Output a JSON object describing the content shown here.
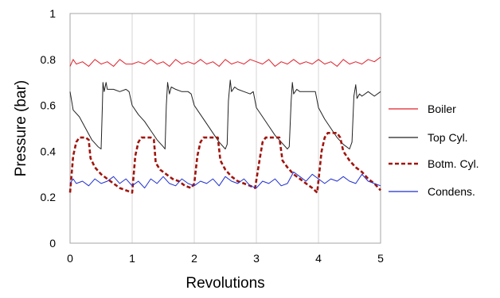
{
  "chart_data": {
    "type": "line",
    "title": "",
    "xlabel": "Revolutions",
    "ylabel": "Pressure (bar)",
    "xlim": [
      0,
      5
    ],
    "ylim": [
      0,
      1
    ],
    "x_ticks": [
      "0",
      "1",
      "2",
      "3",
      "4",
      "5"
    ],
    "y_ticks": [
      "0",
      "0.2",
      "0.4",
      "0.6",
      "0.8",
      "1"
    ],
    "grid": "vertical",
    "legend_position": "right",
    "series": [
      {
        "name": "Boiler",
        "color": "#e0202a",
        "style": "solid",
        "points": [
          [
            0,
            0.77
          ],
          [
            0.05,
            0.8
          ],
          [
            0.1,
            0.78
          ],
          [
            0.2,
            0.79
          ],
          [
            0.3,
            0.77
          ],
          [
            0.4,
            0.8
          ],
          [
            0.5,
            0.78
          ],
          [
            0.6,
            0.79
          ],
          [
            0.7,
            0.77
          ],
          [
            0.8,
            0.8
          ],
          [
            0.9,
            0.78
          ],
          [
            1.0,
            0.78
          ],
          [
            1.1,
            0.79
          ],
          [
            1.2,
            0.78
          ],
          [
            1.3,
            0.8
          ],
          [
            1.4,
            0.78
          ],
          [
            1.5,
            0.79
          ],
          [
            1.6,
            0.77
          ],
          [
            1.7,
            0.8
          ],
          [
            1.8,
            0.78
          ],
          [
            1.9,
            0.79
          ],
          [
            2.0,
            0.78
          ],
          [
            2.1,
            0.8
          ],
          [
            2.2,
            0.78
          ],
          [
            2.3,
            0.79
          ],
          [
            2.4,
            0.77
          ],
          [
            2.5,
            0.8
          ],
          [
            2.6,
            0.78
          ],
          [
            2.7,
            0.79
          ],
          [
            2.8,
            0.78
          ],
          [
            2.9,
            0.8
          ],
          [
            3.0,
            0.79
          ],
          [
            3.1,
            0.78
          ],
          [
            3.2,
            0.8
          ],
          [
            3.3,
            0.77
          ],
          [
            3.4,
            0.79
          ],
          [
            3.5,
            0.78
          ],
          [
            3.6,
            0.8
          ],
          [
            3.7,
            0.78
          ],
          [
            3.8,
            0.79
          ],
          [
            3.9,
            0.78
          ],
          [
            4.0,
            0.8
          ],
          [
            4.1,
            0.78
          ],
          [
            4.2,
            0.79
          ],
          [
            4.3,
            0.77
          ],
          [
            4.4,
            0.8
          ],
          [
            4.5,
            0.78
          ],
          [
            4.6,
            0.79
          ],
          [
            4.7,
            0.78
          ],
          [
            4.8,
            0.8
          ],
          [
            4.9,
            0.79
          ],
          [
            5.0,
            0.81
          ]
        ]
      },
      {
        "name": "Top Cyl.",
        "color": "#222222",
        "style": "solid",
        "points": [
          [
            0,
            0.66
          ],
          [
            0.05,
            0.58
          ],
          [
            0.15,
            0.55
          ],
          [
            0.25,
            0.5
          ],
          [
            0.35,
            0.45
          ],
          [
            0.45,
            0.42
          ],
          [
            0.5,
            0.41
          ],
          [
            0.52,
            0.6
          ],
          [
            0.53,
            0.7
          ],
          [
            0.55,
            0.66
          ],
          [
            0.58,
            0.7
          ],
          [
            0.6,
            0.67
          ],
          [
            0.7,
            0.67
          ],
          [
            0.8,
            0.66
          ],
          [
            0.9,
            0.67
          ],
          [
            0.95,
            0.66
          ],
          [
            1.0,
            0.6
          ],
          [
            1.1,
            0.56
          ],
          [
            1.2,
            0.53
          ],
          [
            1.3,
            0.49
          ],
          [
            1.4,
            0.45
          ],
          [
            1.5,
            0.42
          ],
          [
            1.53,
            0.41
          ],
          [
            1.55,
            0.6
          ],
          [
            1.57,
            0.7
          ],
          [
            1.6,
            0.65
          ],
          [
            1.63,
            0.68
          ],
          [
            1.7,
            0.67
          ],
          [
            1.8,
            0.66
          ],
          [
            1.9,
            0.66
          ],
          [
            1.95,
            0.65
          ],
          [
            2.0,
            0.6
          ],
          [
            2.1,
            0.56
          ],
          [
            2.2,
            0.52
          ],
          [
            2.3,
            0.48
          ],
          [
            2.4,
            0.44
          ],
          [
            2.5,
            0.41
          ],
          [
            2.53,
            0.43
          ],
          [
            2.55,
            0.62
          ],
          [
            2.58,
            0.71
          ],
          [
            2.6,
            0.66
          ],
          [
            2.65,
            0.68
          ],
          [
            2.7,
            0.67
          ],
          [
            2.8,
            0.66
          ],
          [
            2.9,
            0.65
          ],
          [
            2.95,
            0.66
          ],
          [
            3.0,
            0.59
          ],
          [
            3.1,
            0.55
          ],
          [
            3.2,
            0.51
          ],
          [
            3.3,
            0.47
          ],
          [
            3.4,
            0.44
          ],
          [
            3.5,
            0.41
          ],
          [
            3.53,
            0.42
          ],
          [
            3.56,
            0.62
          ],
          [
            3.58,
            0.7
          ],
          [
            3.6,
            0.65
          ],
          [
            3.65,
            0.67
          ],
          [
            3.7,
            0.66
          ],
          [
            3.8,
            0.66
          ],
          [
            3.9,
            0.66
          ],
          [
            3.95,
            0.66
          ],
          [
            4.0,
            0.59
          ],
          [
            4.1,
            0.54
          ],
          [
            4.2,
            0.5
          ],
          [
            4.3,
            0.46
          ],
          [
            4.4,
            0.43
          ],
          [
            4.5,
            0.41
          ],
          [
            4.54,
            0.44
          ],
          [
            4.57,
            0.64
          ],
          [
            4.6,
            0.69
          ],
          [
            4.62,
            0.63
          ],
          [
            4.66,
            0.65
          ],
          [
            4.7,
            0.64
          ],
          [
            4.8,
            0.66
          ],
          [
            4.9,
            0.64
          ],
          [
            5.0,
            0.66
          ]
        ]
      },
      {
        "name": "Botm. Cyl.",
        "color": "#a0150e",
        "style": "dashed",
        "points": [
          [
            0,
            0.22
          ],
          [
            0.05,
            0.38
          ],
          [
            0.1,
            0.44
          ],
          [
            0.15,
            0.46
          ],
          [
            0.25,
            0.46
          ],
          [
            0.3,
            0.45
          ],
          [
            0.33,
            0.37
          ],
          [
            0.4,
            0.33
          ],
          [
            0.5,
            0.3
          ],
          [
            0.6,
            0.28
          ],
          [
            0.7,
            0.26
          ],
          [
            0.8,
            0.24
          ],
          [
            0.9,
            0.23
          ],
          [
            1.0,
            0.22
          ],
          [
            1.05,
            0.38
          ],
          [
            1.1,
            0.44
          ],
          [
            1.15,
            0.46
          ],
          [
            1.3,
            0.46
          ],
          [
            1.35,
            0.45
          ],
          [
            1.38,
            0.35
          ],
          [
            1.45,
            0.32
          ],
          [
            1.55,
            0.3
          ],
          [
            1.65,
            0.28
          ],
          [
            1.75,
            0.27
          ],
          [
            1.85,
            0.25
          ],
          [
            1.95,
            0.24
          ],
          [
            2.0,
            0.26
          ],
          [
            2.05,
            0.38
          ],
          [
            2.1,
            0.44
          ],
          [
            2.15,
            0.46
          ],
          [
            2.3,
            0.46
          ],
          [
            2.38,
            0.46
          ],
          [
            2.42,
            0.36
          ],
          [
            2.5,
            0.32
          ],
          [
            2.6,
            0.29
          ],
          [
            2.7,
            0.27
          ],
          [
            2.8,
            0.26
          ],
          [
            2.9,
            0.25
          ],
          [
            2.98,
            0.24
          ],
          [
            3.05,
            0.36
          ],
          [
            3.1,
            0.44
          ],
          [
            3.15,
            0.46
          ],
          [
            3.3,
            0.46
          ],
          [
            3.37,
            0.46
          ],
          [
            3.42,
            0.36
          ],
          [
            3.5,
            0.33
          ],
          [
            3.6,
            0.3
          ],
          [
            3.7,
            0.28
          ],
          [
            3.8,
            0.26
          ],
          [
            3.9,
            0.24
          ],
          [
            3.98,
            0.22
          ],
          [
            4.05,
            0.4
          ],
          [
            4.1,
            0.46
          ],
          [
            4.15,
            0.48
          ],
          [
            4.3,
            0.48
          ],
          [
            4.35,
            0.46
          ],
          [
            4.4,
            0.4
          ],
          [
            4.5,
            0.36
          ],
          [
            4.6,
            0.33
          ],
          [
            4.7,
            0.31
          ],
          [
            4.8,
            0.28
          ],
          [
            4.9,
            0.26
          ],
          [
            5.0,
            0.23
          ]
        ]
      },
      {
        "name": "Condens.",
        "color": "#1f2fd0",
        "style": "solid",
        "points": [
          [
            0,
            0.26
          ],
          [
            0.05,
            0.28
          ],
          [
            0.1,
            0.26
          ],
          [
            0.2,
            0.27
          ],
          [
            0.3,
            0.25
          ],
          [
            0.4,
            0.28
          ],
          [
            0.5,
            0.26
          ],
          [
            0.6,
            0.27
          ],
          [
            0.7,
            0.29
          ],
          [
            0.8,
            0.26
          ],
          [
            0.9,
            0.28
          ],
          [
            1.0,
            0.25
          ],
          [
            1.1,
            0.27
          ],
          [
            1.2,
            0.24
          ],
          [
            1.3,
            0.28
          ],
          [
            1.4,
            0.26
          ],
          [
            1.5,
            0.29
          ],
          [
            1.6,
            0.26
          ],
          [
            1.7,
            0.25
          ],
          [
            1.8,
            0.28
          ],
          [
            1.9,
            0.26
          ],
          [
            2.0,
            0.25
          ],
          [
            2.1,
            0.27
          ],
          [
            2.2,
            0.26
          ],
          [
            2.3,
            0.28
          ],
          [
            2.4,
            0.25
          ],
          [
            2.5,
            0.29
          ],
          [
            2.6,
            0.27
          ],
          [
            2.7,
            0.26
          ],
          [
            2.8,
            0.28
          ],
          [
            2.9,
            0.25
          ],
          [
            3.0,
            0.24
          ],
          [
            3.1,
            0.27
          ],
          [
            3.2,
            0.26
          ],
          [
            3.3,
            0.28
          ],
          [
            3.4,
            0.25
          ],
          [
            3.5,
            0.26
          ],
          [
            3.6,
            0.31
          ],
          [
            3.7,
            0.29
          ],
          [
            3.8,
            0.27
          ],
          [
            3.9,
            0.3
          ],
          [
            4.0,
            0.28
          ],
          [
            4.1,
            0.26
          ],
          [
            4.2,
            0.28
          ],
          [
            4.3,
            0.27
          ],
          [
            4.4,
            0.29
          ],
          [
            4.5,
            0.27
          ],
          [
            4.6,
            0.26
          ],
          [
            4.7,
            0.3
          ],
          [
            4.8,
            0.27
          ],
          [
            4.9,
            0.26
          ],
          [
            5.0,
            0.25
          ]
        ]
      }
    ]
  }
}
